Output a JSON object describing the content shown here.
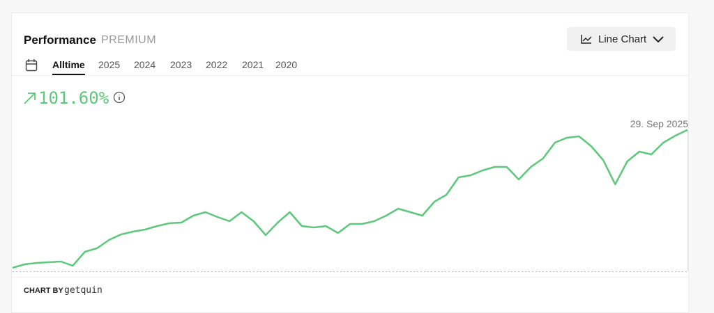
{
  "header": {
    "title": "Performance",
    "badge": "PREMIUM",
    "view_button": "Line Chart"
  },
  "tabs": [
    "Alltime",
    "2025",
    "2024",
    "2023",
    "2022",
    "2021",
    "2020"
  ],
  "performance": "101.60%",
  "hover_date": "29. Sep 2025",
  "footer": {
    "label": "CHART BY",
    "brand": "getquin"
  },
  "chart_data": {
    "type": "line",
    "color": "#5cc97a",
    "ylim": [
      -1,
      112
    ],
    "values": [
      2.5,
      5,
      6,
      6.5,
      7,
      4,
      14,
      16.5,
      22.5,
      26.5,
      28.5,
      30,
      32.5,
      34.5,
      35,
      40,
      42.5,
      39,
      36,
      42.5,
      36,
      26,
      35,
      42.5,
      32.5,
      31.5,
      32.5,
      27.5,
      34,
      34,
      36,
      40,
      45,
      42.5,
      40,
      50,
      55,
      67.5,
      69,
      72.5,
      75,
      75,
      66,
      75,
      81,
      92.5,
      96,
      97,
      90,
      80,
      62.5,
      79,
      86,
      84,
      92.5,
      97.5,
      101.6
    ]
  }
}
